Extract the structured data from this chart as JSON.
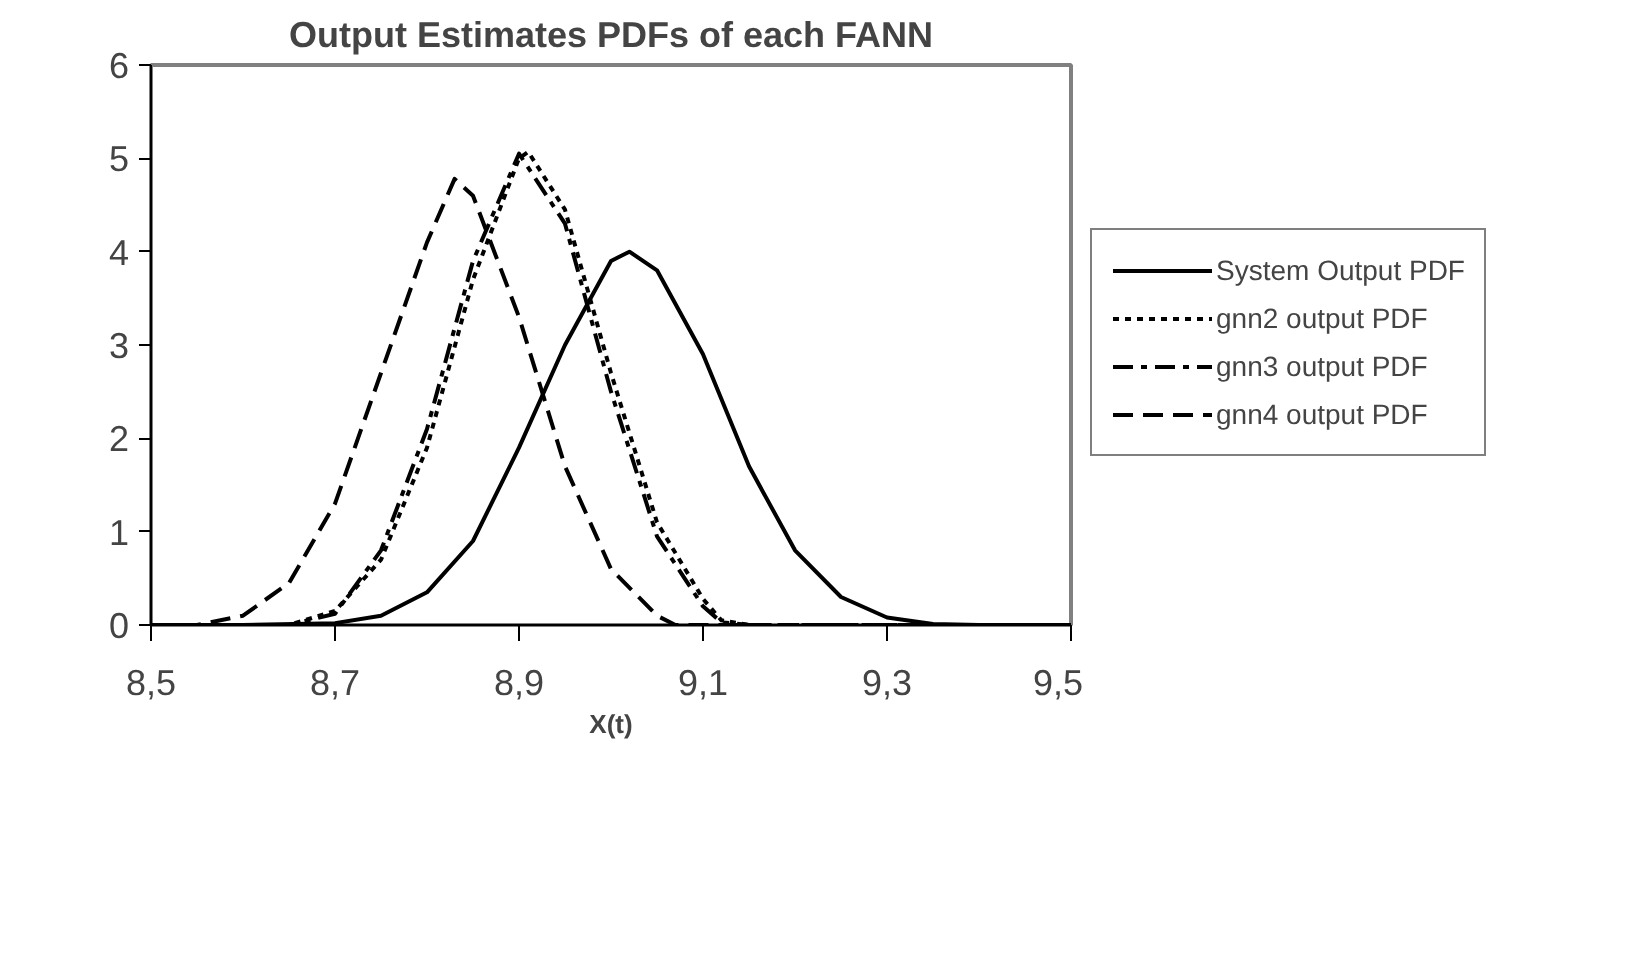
{
  "chart_data": {
    "type": "line",
    "title": "Output Estimates PDFs of each FANN",
    "xlabel": "X(t)",
    "xlim": [
      8.5,
      9.5
    ],
    "ylim": [
      0,
      6
    ],
    "xticks": [
      {
        "value": 8.5,
        "label": "8,5"
      },
      {
        "value": 8.7,
        "label": "8,7"
      },
      {
        "value": 8.9,
        "label": "8,9"
      },
      {
        "value": 9.1,
        "label": "9,1"
      },
      {
        "value": 9.3,
        "label": "9,3"
      },
      {
        "value": 9.5,
        "label": "9,5"
      }
    ],
    "yticks": [
      0,
      1,
      2,
      3,
      4,
      5,
      6
    ],
    "grid": false,
    "legend": "right",
    "series": [
      {
        "name": "System Output PDF",
        "color": "#000000",
        "line_style": "solid",
        "x": [
          8.5,
          8.6,
          8.7,
          8.75,
          8.8,
          8.85,
          8.9,
          8.95,
          9.0,
          9.02,
          9.05,
          9.1,
          9.15,
          9.2,
          9.25,
          9.3,
          9.35,
          9.4,
          9.5
        ],
        "values": [
          0,
          0,
          0.02,
          0.1,
          0.35,
          0.9,
          1.9,
          3.0,
          3.9,
          4.0,
          3.8,
          2.9,
          1.7,
          0.8,
          0.3,
          0.08,
          0.01,
          0,
          0
        ]
      },
      {
        "name": "gnn2 output PDF",
        "color": "#000000",
        "line_style": "dotted",
        "x": [
          8.5,
          8.65,
          8.7,
          8.75,
          8.8,
          8.85,
          8.9,
          8.91,
          8.95,
          9.0,
          9.05,
          9.1,
          9.12,
          9.15,
          9.5
        ],
        "values": [
          0,
          0,
          0.15,
          0.7,
          1.9,
          3.7,
          5.0,
          5.07,
          4.45,
          2.7,
          1.1,
          0.28,
          0.05,
          0,
          0
        ]
      },
      {
        "name": "gnn3 output PDF",
        "color": "#000000",
        "line_style": "dashdot",
        "x": [
          8.5,
          8.65,
          8.7,
          8.75,
          8.8,
          8.85,
          8.9,
          8.95,
          9.0,
          9.05,
          9.1,
          9.12,
          9.15,
          9.5
        ],
        "values": [
          0,
          0,
          0.12,
          0.8,
          2.1,
          3.9,
          5.05,
          4.3,
          2.5,
          0.95,
          0.2,
          0.03,
          0,
          0
        ]
      },
      {
        "name": "gnn4 output PDF",
        "color": "#000000",
        "line_style": "dashed",
        "x": [
          8.5,
          8.55,
          8.6,
          8.65,
          8.7,
          8.75,
          8.8,
          8.83,
          8.85,
          8.9,
          8.95,
          9.0,
          9.05,
          9.07,
          9.5
        ],
        "values": [
          0,
          0,
          0.1,
          0.45,
          1.3,
          2.7,
          4.1,
          4.78,
          4.6,
          3.3,
          1.7,
          0.6,
          0.1,
          0,
          0
        ]
      }
    ]
  }
}
